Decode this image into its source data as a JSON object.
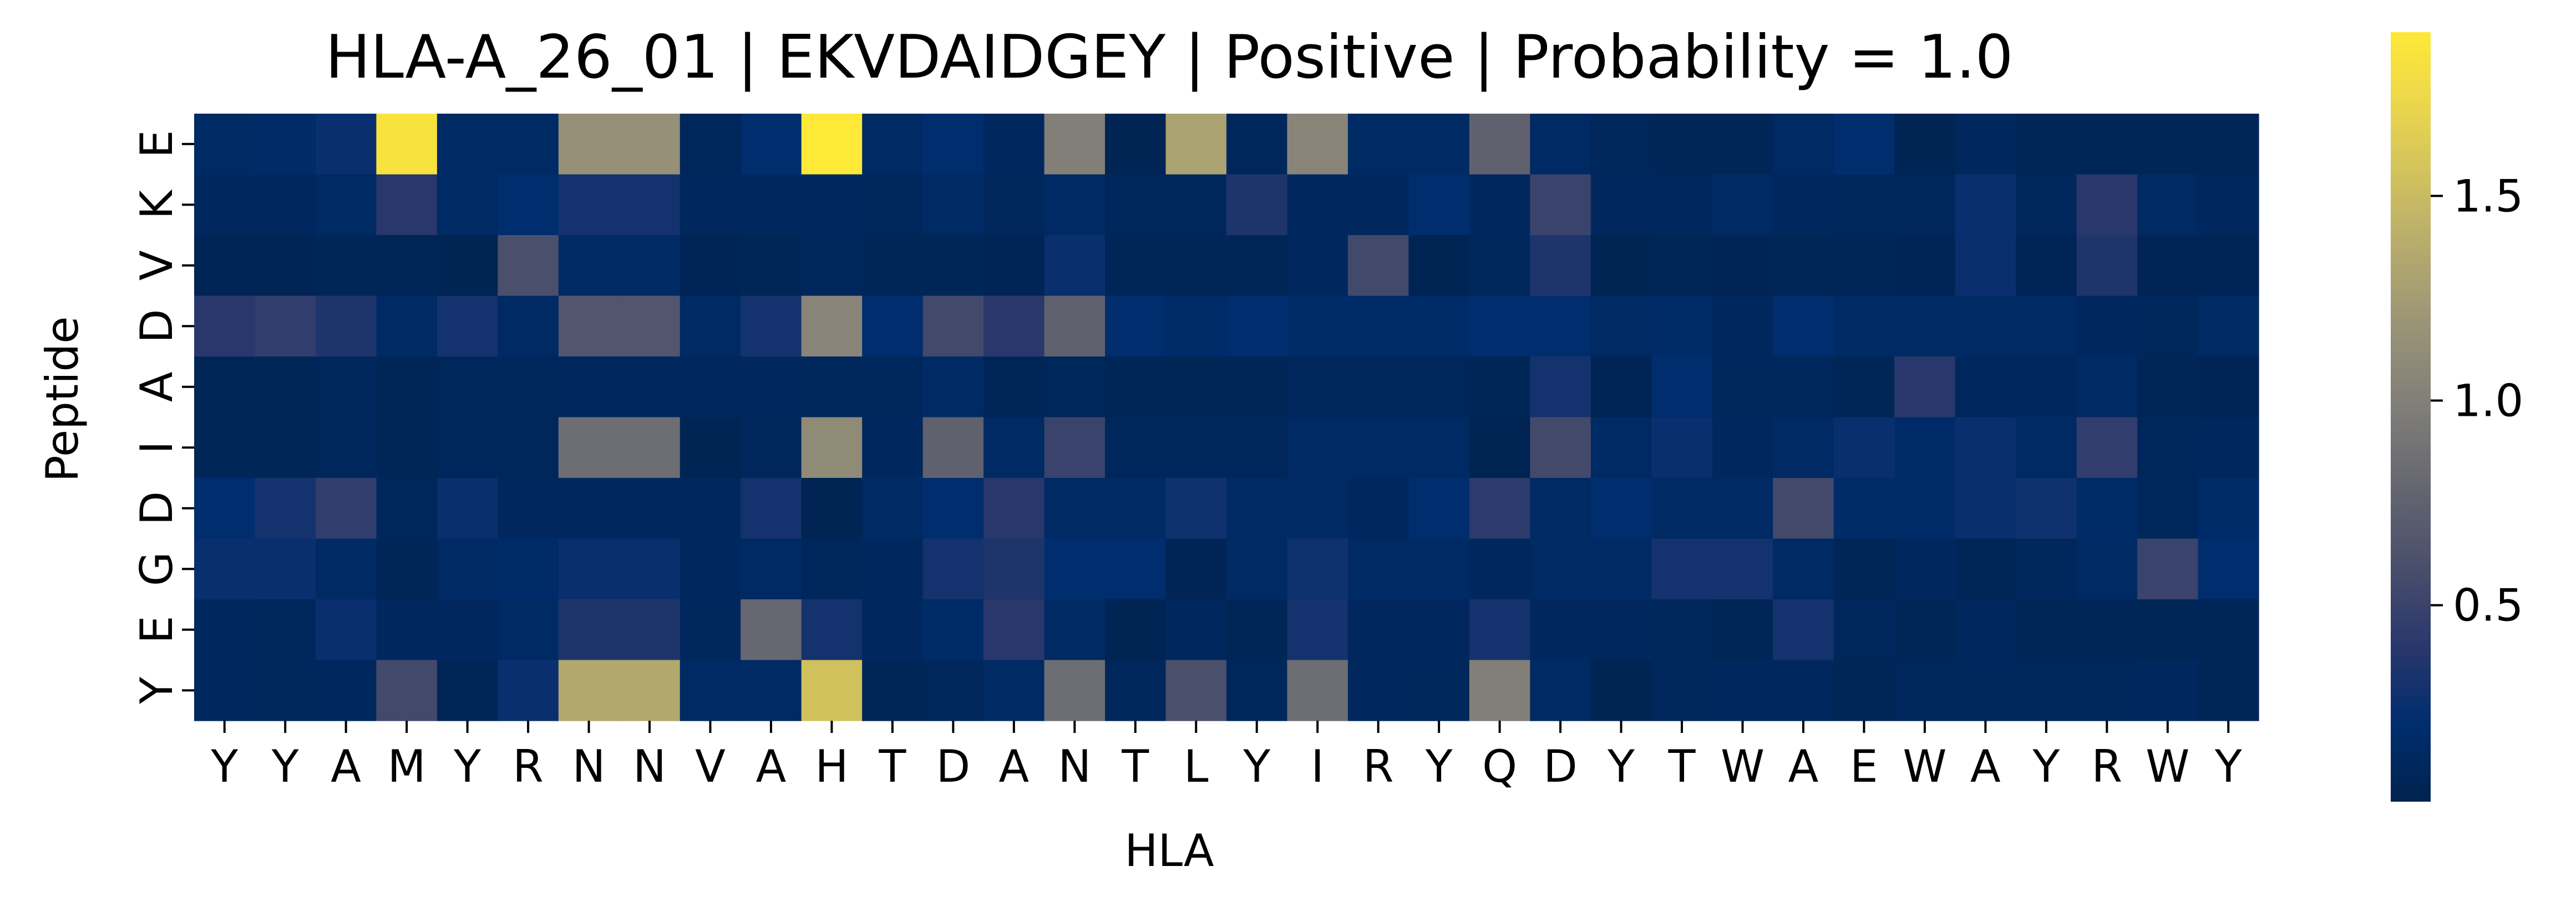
{
  "chart_data": {
    "type": "heatmap",
    "title": "HLA-A_26_01 | EKVDAIDGEY | Positive | Probability = 1.0",
    "xlabel": "HLA",
    "ylabel": "Peptide",
    "x_categories": [
      "Y",
      "Y",
      "A",
      "M",
      "Y",
      "R",
      "N",
      "N",
      "V",
      "A",
      "H",
      "T",
      "D",
      "A",
      "N",
      "T",
      "L",
      "Y",
      "I",
      "R",
      "Y",
      "Q",
      "D",
      "Y",
      "T",
      "W",
      "A",
      "E",
      "W",
      "A",
      "Y",
      "R",
      "W",
      "Y"
    ],
    "y_categories": [
      "E",
      "K",
      "V",
      "D",
      "A",
      "I",
      "D",
      "G",
      "E",
      "Y"
    ],
    "colorbar": {
      "min": 0.02,
      "max": 1.9,
      "ticks": [
        0.5,
        1.0,
        1.5
      ],
      "tick_labels": [
        "0.5",
        "1.0",
        "1.5"
      ],
      "colormap": "cividis"
    },
    "values": [
      [
        0.15,
        0.17,
        0.25,
        1.85,
        0.15,
        0.15,
        1.15,
        1.15,
        0.1,
        0.2,
        1.9,
        0.15,
        0.2,
        0.12,
        1.0,
        0.05,
        1.3,
        0.1,
        1.05,
        0.15,
        0.15,
        0.75,
        0.15,
        0.1,
        0.08,
        0.08,
        0.15,
        0.2,
        0.05,
        0.12,
        0.08,
        0.08,
        0.08,
        0.08
      ],
      [
        0.12,
        0.12,
        0.15,
        0.4,
        0.15,
        0.2,
        0.3,
        0.3,
        0.12,
        0.12,
        0.12,
        0.1,
        0.15,
        0.1,
        0.15,
        0.1,
        0.1,
        0.35,
        0.12,
        0.12,
        0.2,
        0.12,
        0.5,
        0.12,
        0.12,
        0.15,
        0.12,
        0.1,
        0.1,
        0.25,
        0.1,
        0.4,
        0.15,
        0.12
      ],
      [
        0.06,
        0.06,
        0.08,
        0.08,
        0.05,
        0.6,
        0.15,
        0.15,
        0.06,
        0.08,
        0.1,
        0.08,
        0.08,
        0.06,
        0.25,
        0.08,
        0.08,
        0.08,
        0.12,
        0.55,
        0.05,
        0.1,
        0.35,
        0.05,
        0.08,
        0.06,
        0.08,
        0.08,
        0.06,
        0.25,
        0.06,
        0.35,
        0.06,
        0.06
      ],
      [
        0.4,
        0.45,
        0.35,
        0.15,
        0.3,
        0.15,
        0.65,
        0.65,
        0.15,
        0.3,
        1.05,
        0.2,
        0.55,
        0.4,
        0.75,
        0.2,
        0.18,
        0.2,
        0.18,
        0.18,
        0.18,
        0.2,
        0.2,
        0.15,
        0.18,
        0.12,
        0.2,
        0.15,
        0.15,
        0.15,
        0.15,
        0.12,
        0.1,
        0.15
      ],
      [
        0.08,
        0.08,
        0.1,
        0.08,
        0.1,
        0.1,
        0.12,
        0.12,
        0.12,
        0.12,
        0.1,
        0.1,
        0.15,
        0.08,
        0.1,
        0.08,
        0.08,
        0.08,
        0.1,
        0.1,
        0.1,
        0.08,
        0.3,
        0.06,
        0.2,
        0.1,
        0.1,
        0.08,
        0.4,
        0.12,
        0.12,
        0.15,
        0.08,
        0.06
      ],
      [
        0.08,
        0.08,
        0.1,
        0.08,
        0.1,
        0.1,
        0.85,
        0.85,
        0.05,
        0.1,
        1.1,
        0.12,
        0.75,
        0.15,
        0.5,
        0.1,
        0.1,
        0.1,
        0.15,
        0.15,
        0.15,
        0.05,
        0.55,
        0.15,
        0.25,
        0.12,
        0.15,
        0.25,
        0.18,
        0.25,
        0.15,
        0.45,
        0.1,
        0.12
      ],
      [
        0.2,
        0.3,
        0.45,
        0.1,
        0.25,
        0.12,
        0.12,
        0.12,
        0.12,
        0.3,
        0.05,
        0.15,
        0.2,
        0.4,
        0.15,
        0.15,
        0.28,
        0.15,
        0.15,
        0.12,
        0.2,
        0.42,
        0.15,
        0.2,
        0.15,
        0.15,
        0.55,
        0.18,
        0.18,
        0.25,
        0.28,
        0.18,
        0.1,
        0.18
      ],
      [
        0.25,
        0.25,
        0.15,
        0.08,
        0.15,
        0.18,
        0.25,
        0.25,
        0.12,
        0.15,
        0.1,
        0.12,
        0.3,
        0.35,
        0.2,
        0.2,
        0.06,
        0.15,
        0.28,
        0.15,
        0.15,
        0.12,
        0.15,
        0.15,
        0.3,
        0.3,
        0.15,
        0.08,
        0.12,
        0.08,
        0.1,
        0.15,
        0.5,
        0.2
      ],
      [
        0.12,
        0.1,
        0.25,
        0.12,
        0.12,
        0.15,
        0.35,
        0.35,
        0.1,
        0.8,
        0.3,
        0.12,
        0.18,
        0.4,
        0.15,
        0.05,
        0.12,
        0.08,
        0.3,
        0.12,
        0.12,
        0.3,
        0.12,
        0.12,
        0.1,
        0.08,
        0.3,
        0.1,
        0.08,
        0.12,
        0.08,
        0.08,
        0.08,
        0.08
      ],
      [
        0.12,
        0.1,
        0.12,
        0.55,
        0.08,
        0.25,
        1.35,
        1.35,
        0.15,
        0.15,
        1.55,
        0.08,
        0.1,
        0.15,
        0.85,
        0.1,
        0.6,
        0.1,
        0.85,
        0.12,
        0.1,
        1.0,
        0.15,
        0.05,
        0.1,
        0.12,
        0.12,
        0.08,
        0.1,
        0.1,
        0.1,
        0.1,
        0.12,
        0.08
      ]
    ]
  }
}
